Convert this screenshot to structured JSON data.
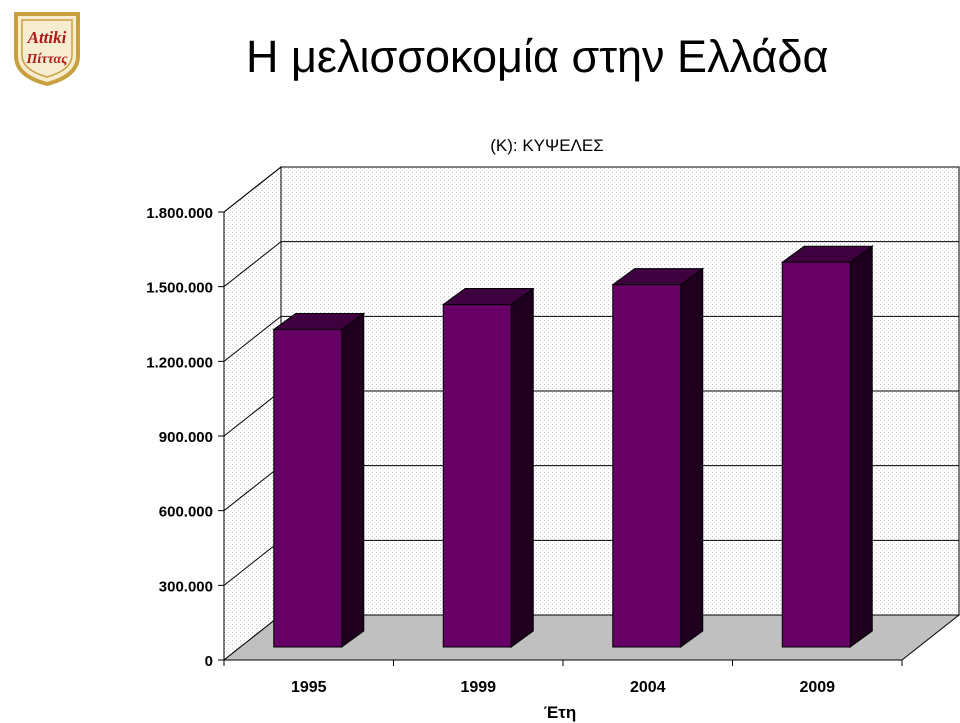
{
  "page": {
    "title": "Η μελισσοκομία στην Ελλάδα",
    "logo_text": [
      "Attiki",
      "Πίττας"
    ]
  },
  "chart_data": {
    "type": "bar",
    "title": "(Κ): ΚΥΨΕΛΕΣ",
    "xlabel": "Έτη",
    "ylabel": "",
    "categories": [
      "1995",
      "1999",
      "2004",
      "2009"
    ],
    "values": [
      1300000,
      1400000,
      1480000,
      1570000
    ],
    "ylim": [
      0,
      1800000
    ],
    "yticks": [
      0,
      300000,
      600000,
      900000,
      1200000,
      1500000,
      1800000
    ],
    "ytick_labels": [
      "0",
      "300.000",
      "600.000",
      "900.000",
      "1.200.000",
      "1.500.000",
      "1.800.000"
    ],
    "grid": true,
    "legend": "none",
    "style": "3d",
    "colors": {
      "bar_front": "#660066",
      "bar_side": "#1e001e",
      "bar_top": "#3e003e",
      "floor": "#c0c0c0",
      "logo_gold": "#c8a040",
      "logo_red": "#b01818"
    }
  }
}
